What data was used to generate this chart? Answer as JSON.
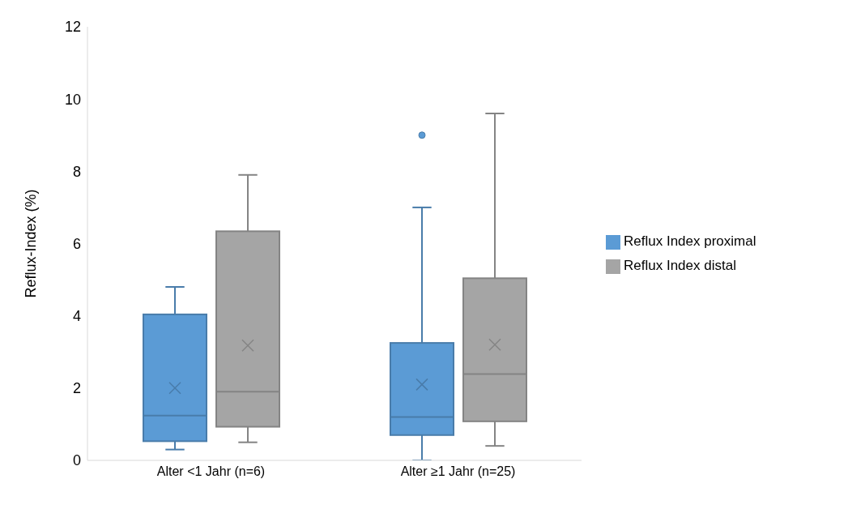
{
  "chart_data": {
    "type": "box",
    "ylabel": "Reflux-Index (%)",
    "categories": [
      "Alter <1 Jahr (n=6)",
      "Alter ≥1 Jahr (n=25)"
    ],
    "ylim": [
      0,
      12
    ],
    "yticks": [
      0,
      2,
      4,
      6,
      8,
      10,
      12
    ],
    "legend": "right",
    "series": [
      {
        "name": "Reflux Index proximal",
        "color": "#5b9bd5",
        "boxes": [
          {
            "low": 0.3,
            "q1": 0.53,
            "median": 1.24,
            "q3": 4.04,
            "high": 4.8,
            "mean": 2.0
          },
          {
            "low": 0,
            "q1": 0.7,
            "median": 1.2,
            "q3": 3.25,
            "high": 7.0,
            "mean": 2.1,
            "outliers": [
              9.0
            ]
          }
        ]
      },
      {
        "name": "Reflux Index distal",
        "color": "#a5a5a5",
        "boxes": [
          {
            "low": 0.5,
            "q1": 0.93,
            "median": 1.9,
            "q3": 6.34,
            "high": 7.9,
            "mean": 3.18
          },
          {
            "low": 0.4,
            "q1": 1.08,
            "median": 2.39,
            "q3": 5.04,
            "high": 9.6,
            "mean": 3.2
          }
        ]
      }
    ]
  }
}
